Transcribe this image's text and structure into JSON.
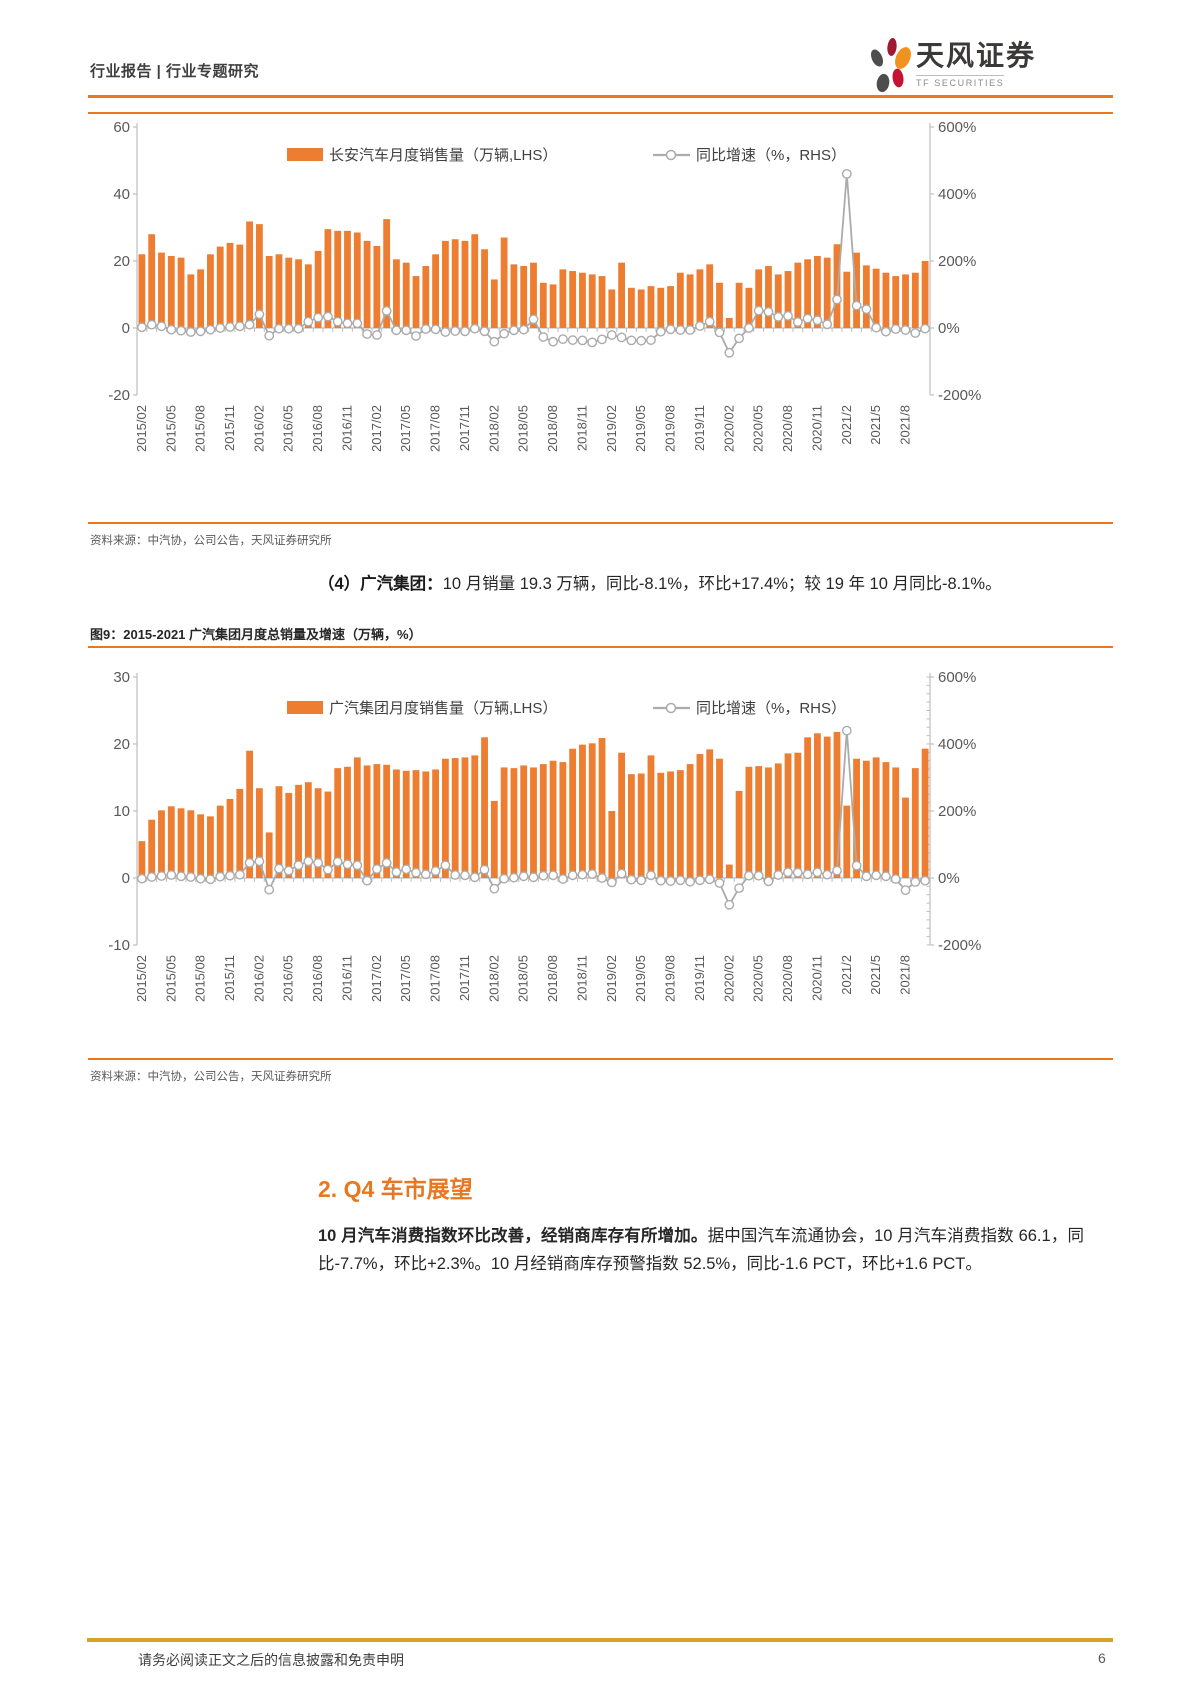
{
  "header": {
    "left_text": "行业报告 | 行业专题研究",
    "brand_cn": "天风证券",
    "brand_en": "TF SECURITIES"
  },
  "source_note": "资料来源：中汽协，公司公告，天风证券研究所",
  "para4": {
    "lead": "（4）广汽集团：",
    "body": "10 月销量 19.3 万辆，同比-8.1%，环比+17.4%；较 19 年 10 月同比-8.1%。"
  },
  "figure9_caption": "图9：2015-2021 广汽集团月度总销量及增速（万辆，%）",
  "section": {
    "title": "2. Q4 车市展望",
    "para_lead": "10 月汽车消费指数环比改善，经销商库存有所增加。",
    "para_body": "据中国汽车流通协会，10 月汽车消费指数 66.1，同比-7.7%，环比+2.3%。10 月经销商库存预警指数 52.5%，同比-1.6 PCT，环比+1.6 PCT。"
  },
  "footer": {
    "note": "请务必阅读正文之后的信息披露和免责申明",
    "page_number": "6"
  },
  "colors": {
    "bar": "#ed7d31",
    "line": "#ababab",
    "axis": "#bfbfbf",
    "rule_orange": "#e87722",
    "footer_gold": "#d9a32a",
    "heading_orange": "#e87722"
  },
  "chart_data": [
    {
      "type": "bar+line",
      "legend": [
        "长安汽车月度销售量（万辆,LHS）",
        "同比增速（%，RHS）"
      ],
      "x_tick_labels": [
        "2015/02",
        "2015/05",
        "2015/08",
        "2015/11",
        "2016/02",
        "2016/05",
        "2016/08",
        "2016/11",
        "2017/02",
        "2017/05",
        "2017/08",
        "2017/11",
        "2018/02",
        "2018/05",
        "2018/08",
        "2018/11",
        "2019/02",
        "2019/05",
        "2019/08",
        "2019/11",
        "2020/02",
        "2020/05",
        "2020/08",
        "2020/11",
        "2021/2",
        "2021/5",
        "2021/8"
      ],
      "tick_every": 3,
      "left_axis": {
        "ticks": [
          60,
          40,
          20,
          0,
          -20
        ],
        "unit": "万辆"
      },
      "right_axis": {
        "ticks": [
          "600%",
          "400%",
          "200%",
          "0%",
          "-200%"
        ],
        "range": [
          -200,
          600
        ],
        "dense_ticks": false
      },
      "series": [
        {
          "name": "长安汽车月度销售量（万辆,LHS）",
          "type": "bar",
          "axis": "left",
          "values": [
            22,
            28,
            22.5,
            21.5,
            21,
            16,
            17.5,
            22,
            24.3,
            25.4,
            24.9,
            31.8,
            31,
            21.5,
            22,
            21,
            20.5,
            19,
            23,
            29.5,
            29,
            29,
            28.5,
            26,
            24.5,
            32.5,
            20.5,
            19.5,
            15.5,
            18.5,
            22,
            26,
            26.5,
            26,
            28,
            23.5,
            14.5,
            27,
            19,
            18.5,
            19.5,
            13.5,
            13,
            17.5,
            17,
            16.5,
            16,
            15.5,
            11.5,
            19.5,
            12,
            11.5,
            12.5,
            12,
            12.5,
            16.5,
            16,
            17.5,
            19,
            13.5,
            3,
            13.5,
            12,
            17.5,
            18.5,
            16,
            17,
            19.5,
            20.5,
            21.5,
            21,
            25,
            16.8,
            22.5,
            18.7,
            17.7,
            16.5,
            15.5,
            16,
            16.5,
            20
          ]
        },
        {
          "name": "同比增速（%，RHS）",
          "type": "line",
          "axis": "right",
          "values": [
            2,
            10,
            5,
            -5,
            -8,
            -12,
            -10,
            -5,
            0,
            3,
            5,
            10,
            41,
            -23,
            -2,
            -2,
            -2,
            19,
            31,
            34,
            19,
            14,
            14,
            -18,
            -21,
            51,
            -7,
            -7,
            -24,
            -3,
            -4,
            -12,
            -9,
            -10,
            -2,
            -10,
            -41,
            -17,
            -7,
            -5,
            26,
            -27,
            -41,
            -33,
            -36,
            -37,
            -43,
            -34,
            -21,
            -28,
            -37,
            -38,
            -36,
            -11,
            -4,
            -6,
            -6,
            6,
            19,
            -13,
            -74,
            -31,
            0,
            52,
            48,
            33,
            36,
            18,
            28,
            23,
            11,
            85,
            460,
            67,
            56,
            1,
            -11,
            -3,
            -6,
            -15,
            -2
          ]
        }
      ]
    },
    {
      "type": "bar+line",
      "legend": [
        "广汽集团月度销售量（万辆,LHS）",
        "同比增速（%，RHS）"
      ],
      "x_tick_labels": [
        "2015/02",
        "2015/05",
        "2015/08",
        "2015/11",
        "2016/02",
        "2016/05",
        "2016/08",
        "2016/11",
        "2017/02",
        "2017/05",
        "2017/08",
        "2017/11",
        "2018/02",
        "2018/05",
        "2018/08",
        "2018/11",
        "2019/02",
        "2019/05",
        "2019/08",
        "2019/11",
        "2020/02",
        "2020/05",
        "2020/08",
        "2020/11",
        "2021/2",
        "2021/5",
        "2021/8"
      ],
      "tick_every": 3,
      "left_axis": {
        "ticks": [
          30,
          20,
          10,
          0,
          -10
        ],
        "unit": "万辆"
      },
      "right_axis": {
        "ticks": [
          "600%",
          "400%",
          "200%",
          "0%",
          "-200%"
        ],
        "range": [
          -200,
          600
        ],
        "dense_ticks": true
      },
      "series": [
        {
          "name": "广汽集团月度销售量（万辆,LHS）",
          "type": "bar",
          "axis": "left",
          "values": [
            5.5,
            8.7,
            10.1,
            10.7,
            10.4,
            10.1,
            9.5,
            9.2,
            10.8,
            11.8,
            13.3,
            19,
            13.4,
            6.8,
            13.7,
            12.7,
            13.9,
            14.3,
            13.4,
            12.9,
            16.4,
            16.6,
            18,
            16.8,
            17,
            16.9,
            16.2,
            16,
            16.1,
            15.9,
            16.2,
            17.8,
            17.9,
            18,
            18.3,
            21,
            11.5,
            16.5,
            16.4,
            16.8,
            16.5,
            17,
            17.5,
            17.3,
            19.3,
            19.9,
            20.1,
            20.9,
            10,
            18.7,
            15.5,
            15.6,
            18.3,
            15.7,
            15.9,
            16.1,
            17,
            18.5,
            19.2,
            17.8,
            2,
            13,
            16.6,
            16.7,
            16.5,
            17.1,
            18.6,
            18.7,
            21,
            21.6,
            21.1,
            21.8,
            10.8,
            17.8,
            17.5,
            18,
            17.3,
            16.5,
            12,
            16.4,
            19.3
          ]
        },
        {
          "name": "同比增速（%，RHS）",
          "type": "line",
          "axis": "right",
          "values": [
            -2,
            3,
            6,
            9,
            5,
            3,
            -2,
            -4,
            4,
            7,
            10,
            45,
            50,
            -35,
            28,
            22,
            38,
            50,
            45,
            25,
            48,
            41,
            38,
            -8,
            27,
            45,
            18,
            26,
            16,
            11,
            21,
            38,
            9,
            8,
            2,
            25,
            -32,
            -2,
            1,
            5,
            2,
            7,
            8,
            -3,
            8,
            10,
            12,
            0,
            -13,
            13,
            -5,
            -7,
            8,
            -8,
            -9,
            -7,
            -11,
            -7,
            -4,
            -15,
            -80,
            -30,
            7,
            7,
            -10,
            9,
            17,
            16,
            11,
            17,
            10,
            22,
            440,
            37,
            5,
            8,
            5,
            -3,
            -36,
            -12,
            -8
          ]
        }
      ]
    }
  ]
}
